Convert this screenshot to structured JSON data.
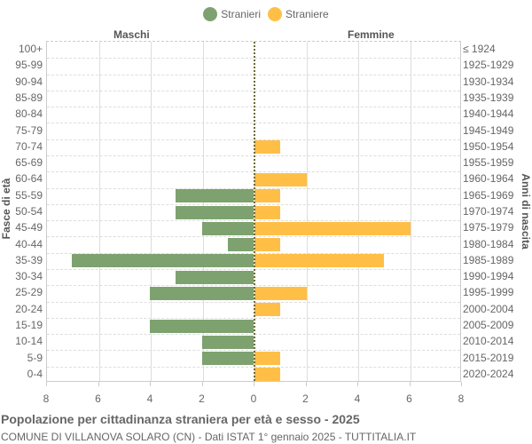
{
  "legend": {
    "items": [
      {
        "label": "Stranieri",
        "color": "#7da26f"
      },
      {
        "label": "Straniere",
        "color": "#ffbf47"
      }
    ]
  },
  "labels": {
    "left_side": "Maschi",
    "right_side": "Femmine",
    "y_left_title": "Fasce di età",
    "y_right_title": "Anni di nascita"
  },
  "title": "Popolazione per cittadinanza straniera per età e sesso - 2025",
  "subtitle": "COMUNE DI VILLANOVA SOLARO (CN) - Dati ISTAT 1° gennaio 2025 - TUTTITALIA.IT",
  "x_ticks": [
    "8",
    "6",
    "4",
    "2",
    "0",
    "2",
    "4",
    "6",
    "8"
  ],
  "chart_data": {
    "type": "bar",
    "orientation": "horizontal-pyramid",
    "title": "Popolazione per cittadinanza straniera per età e sesso - 2025",
    "subtitle": "COMUNE DI VILLANOVA SOLARO (CN) - Dati ISTAT 1° gennaio 2025 - TUTTITALIA.IT",
    "xlabel": "",
    "ylabel": "Fasce di età",
    "ylabel_right": "Anni di nascita",
    "xlim": [
      -8,
      8
    ],
    "grid": true,
    "legend_position": "top",
    "categories": [
      "100+",
      "95-99",
      "90-94",
      "85-89",
      "80-84",
      "75-79",
      "70-74",
      "65-69",
      "60-64",
      "55-59",
      "50-54",
      "45-49",
      "40-44",
      "35-39",
      "30-34",
      "25-29",
      "20-24",
      "15-19",
      "10-14",
      "5-9",
      "0-4"
    ],
    "birth_years": [
      "≤ 1924",
      "1925-1929",
      "1930-1934",
      "1935-1939",
      "1940-1944",
      "1945-1949",
      "1950-1954",
      "1955-1959",
      "1960-1964",
      "1965-1969",
      "1970-1974",
      "1975-1979",
      "1980-1984",
      "1985-1989",
      "1990-1994",
      "1995-1999",
      "2000-2004",
      "2005-2009",
      "2010-2014",
      "2015-2019",
      "2020-2024"
    ],
    "series": [
      {
        "name": "Stranieri",
        "side": "Maschi",
        "color": "#7da26f",
        "values": [
          0,
          0,
          0,
          0,
          0,
          0,
          0,
          0,
          0,
          3,
          3,
          2,
          1,
          7,
          3,
          4,
          0,
          4,
          2,
          2,
          0
        ]
      },
      {
        "name": "Straniere",
        "side": "Femmine",
        "color": "#ffbf47",
        "values": [
          0,
          0,
          0,
          0,
          0,
          0,
          1,
          0,
          2,
          1,
          1,
          6,
          1,
          5,
          0,
          2,
          1,
          0,
          0,
          1,
          1
        ]
      }
    ]
  }
}
